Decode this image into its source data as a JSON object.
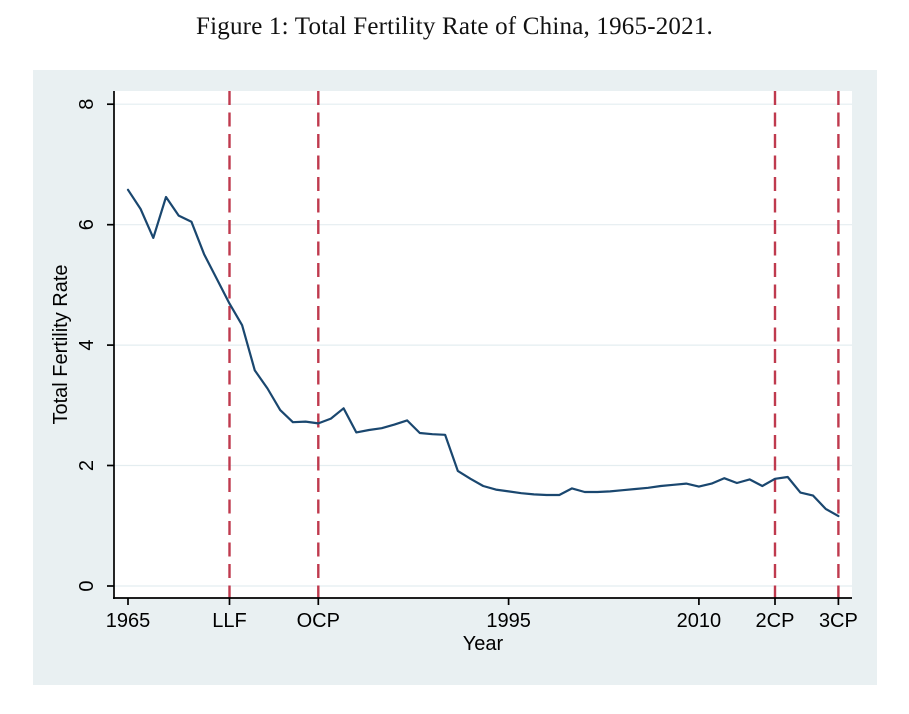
{
  "figure": {
    "caption": "Figure 1: Total Fertility Rate of China, 1965-2021."
  },
  "chart_data": {
    "type": "line",
    "title": "Figure 1: Total Fertility Rate of China, 1965-2021.",
    "xlabel": "Year",
    "ylabel": "Total Fertility Rate",
    "xlim": [
      1963.9,
      2022.07
    ],
    "ylim": [
      -0.2,
      8.22
    ],
    "grid": "horizontal-y-only",
    "legend": "none",
    "yticks": [
      0,
      2,
      4,
      6,
      8
    ],
    "xticks": [
      {
        "year": 1965,
        "label": "1965",
        "event_line": false
      },
      {
        "year": 1973,
        "label": "LLF",
        "event_line": true
      },
      {
        "year": 1980,
        "label": "OCP",
        "event_line": true
      },
      {
        "year": 1995,
        "label": "1995",
        "event_line": false
      },
      {
        "year": 2010,
        "label": "2010",
        "event_line": false
      },
      {
        "year": 2016,
        "label": "2CP",
        "event_line": true
      },
      {
        "year": 2021,
        "label": "3CP",
        "event_line": true
      }
    ],
    "series": [
      {
        "name": "Total Fertility Rate of China",
        "color": "#1a476f",
        "x": [
          1965,
          1966,
          1967,
          1968,
          1969,
          1970,
          1971,
          1972,
          1973,
          1974,
          1975,
          1976,
          1977,
          1978,
          1979,
          1980,
          1981,
          1982,
          1983,
          1984,
          1985,
          1986,
          1987,
          1988,
          1989,
          1990,
          1991,
          1992,
          1993,
          1994,
          1995,
          1996,
          1997,
          1998,
          1999,
          2000,
          2001,
          2002,
          2003,
          2004,
          2005,
          2006,
          2007,
          2008,
          2009,
          2010,
          2011,
          2012,
          2013,
          2014,
          2015,
          2016,
          2017,
          2018,
          2019,
          2020,
          2021
        ],
        "y": [
          6.58,
          6.26,
          5.78,
          6.46,
          6.15,
          6.05,
          5.51,
          5.1,
          4.69,
          4.33,
          3.58,
          3.28,
          2.92,
          2.72,
          2.73,
          2.7,
          2.78,
          2.95,
          2.55,
          2.59,
          2.62,
          2.68,
          2.75,
          2.54,
          2.52,
          2.51,
          1.91,
          1.78,
          1.66,
          1.6,
          1.57,
          1.54,
          1.52,
          1.51,
          1.51,
          1.62,
          1.56,
          1.56,
          1.57,
          1.59,
          1.61,
          1.63,
          1.66,
          1.68,
          1.7,
          1.65,
          1.7,
          1.79,
          1.71,
          1.77,
          1.66,
          1.78,
          1.81,
          1.55,
          1.5,
          1.28,
          1.16
        ]
      }
    ],
    "colors": {
      "line": "#1a476f",
      "event_line": "#bf3a4e",
      "plot_bg": "#ffffff",
      "figure_bg": "#e9f0f2",
      "grid": "#e4edf0",
      "axis": "#000000",
      "text": "#000000"
    }
  }
}
